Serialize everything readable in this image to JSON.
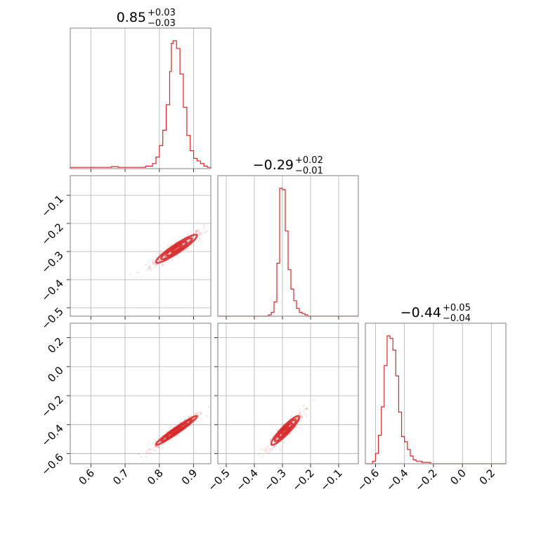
{
  "chart_data": {
    "type": "corner",
    "color": "#d62728",
    "grid": true,
    "titles": [
      {
        "value": "0.85",
        "plus": "+0.03",
        "minus": "−0.03"
      },
      {
        "value": "−0.29",
        "plus": "+0.02",
        "minus": "−0.01"
      },
      {
        "value": "−0.44",
        "plus": "+0.05",
        "minus": "−0.04"
      }
    ],
    "params": [
      {
        "range": [
          0.54,
          0.95
        ],
        "ticks": [
          0.6,
          0.7,
          0.8,
          0.9
        ],
        "tick_labels": [
          "0.6",
          "0.7",
          "0.8",
          "0.9"
        ]
      },
      {
        "range": [
          -0.53,
          -0.03
        ],
        "ticks": [
          -0.5,
          -0.4,
          -0.3,
          -0.2,
          -0.1
        ],
        "tick_labels": [
          "−0.5",
          "−0.4",
          "−0.3",
          "−0.2",
          "−0.1"
        ]
      },
      {
        "range": [
          -0.67,
          0.3
        ],
        "ticks": [
          -0.6,
          -0.4,
          -0.2,
          0.0,
          0.2
        ],
        "tick_labels": [
          "−0.6",
          "−0.4",
          "−0.2",
          "0.0",
          "0.2"
        ]
      }
    ],
    "histograms": [
      {
        "edges": [
          0.54,
          0.56,
          0.58,
          0.6,
          0.62,
          0.64,
          0.66,
          0.68,
          0.7,
          0.72,
          0.74,
          0.76,
          0.78,
          0.79,
          0.8,
          0.81,
          0.82,
          0.83,
          0.835,
          0.84,
          0.85,
          0.86,
          0.87,
          0.88,
          0.89,
          0.9,
          0.91,
          0.92,
          0.93,
          0.94,
          0.95
        ],
        "counts": [
          0.01,
          0.01,
          0.01,
          0.01,
          0.01,
          0.01,
          0.015,
          0.01,
          0.01,
          0.01,
          0.01,
          0.02,
          0.04,
          0.09,
          0.18,
          0.3,
          0.5,
          0.76,
          0.98,
          1.0,
          0.94,
          0.74,
          0.48,
          0.26,
          0.14,
          0.08,
          0.06,
          0.04,
          0.02,
          0.01
        ]
      },
      {
        "edges": [
          -0.53,
          -0.35,
          -0.34,
          -0.33,
          -0.32,
          -0.31,
          -0.3,
          -0.29,
          -0.28,
          -0.27,
          -0.26,
          -0.25,
          -0.24,
          -0.23,
          -0.22,
          -0.21,
          -0.03
        ],
        "counts": [
          0.0,
          0.01,
          0.03,
          0.11,
          0.41,
          0.99,
          0.98,
          0.66,
          0.36,
          0.21,
          0.12,
          0.06,
          0.03,
          0.02,
          0.01,
          0.0
        ]
      },
      {
        "edges": [
          -0.67,
          -0.62,
          -0.6,
          -0.58,
          -0.56,
          -0.54,
          -0.52,
          -0.5,
          -0.48,
          -0.46,
          -0.44,
          -0.42,
          -0.4,
          -0.38,
          -0.36,
          -0.34,
          -0.32,
          -0.3,
          -0.28,
          -0.26,
          -0.24,
          -0.22,
          0.3
        ],
        "counts": [
          0.0,
          0.02,
          0.08,
          0.22,
          0.44,
          0.76,
          0.99,
          0.97,
          0.88,
          0.68,
          0.4,
          0.21,
          0.17,
          0.11,
          0.06,
          0.03,
          0.02,
          0.02,
          0.01,
          0.01,
          0.01,
          0.0
        ]
      }
    ],
    "correlations": [
      {
        "x_param": 0,
        "y_param": 1,
        "mean": [
          0.85,
          -0.29
        ],
        "sd": [
          0.03,
          0.025
        ],
        "rho": 0.93
      },
      {
        "x_param": 0,
        "y_param": 2,
        "mean": [
          0.85,
          -0.44
        ],
        "sd": [
          0.03,
          0.05
        ],
        "rho": 0.97
      },
      {
        "x_param": 1,
        "y_param": 2,
        "mean": [
          -0.29,
          -0.44
        ],
        "sd": [
          0.025,
          0.05
        ],
        "rho": 0.92
      }
    ]
  }
}
